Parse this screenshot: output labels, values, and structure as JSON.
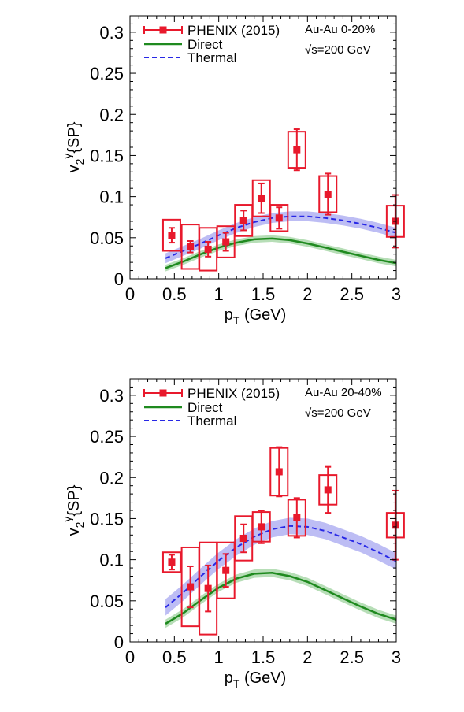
{
  "chart_data": [
    {
      "type": "scatter",
      "note_centrality": "Au-Au 0-20%",
      "note_energy": "√s=200 GeV",
      "xlim": [
        0,
        3
      ],
      "ylim": [
        0,
        0.32
      ],
      "xticks": [
        "0",
        "0.5",
        "1",
        "1.5",
        "2",
        "2.5",
        "3"
      ],
      "yticks": [
        "0",
        "0.05",
        "0.1",
        "0.15",
        "0.2",
        "0.25",
        "0.3"
      ],
      "legend": [
        "PHENIX (2015)",
        "Direct",
        "Thermal"
      ],
      "legend_position": "top-left",
      "grid": false,
      "colors": {
        "data": "#e8192c",
        "direct": "#1f8a1f",
        "direct_band": "#9fd39f",
        "thermal": "#2828e6",
        "thermal_band": "#a7a7f0"
      },
      "phenix": [
        {
          "x": 0.47,
          "y": 0.053,
          "stat": 0.009,
          "sys": 0.019
        },
        {
          "x": 0.68,
          "y": 0.039,
          "stat": 0.007,
          "sys": 0.027
        },
        {
          "x": 0.88,
          "y": 0.036,
          "stat": 0.009,
          "sys": 0.026
        },
        {
          "x": 1.08,
          "y": 0.045,
          "stat": 0.011,
          "sys": 0.019
        },
        {
          "x": 1.28,
          "y": 0.071,
          "stat": 0.012,
          "sys": 0.019
        },
        {
          "x": 1.48,
          "y": 0.098,
          "stat": 0.018,
          "sys": 0.022
        },
        {
          "x": 1.68,
          "y": 0.074,
          "stat": 0.013,
          "sys": 0.016
        },
        {
          "x": 1.88,
          "y": 0.157,
          "stat": 0.025,
          "sys": 0.022
        },
        {
          "x": 2.23,
          "y": 0.103,
          "stat": 0.025,
          "sys": 0.022
        },
        {
          "x": 2.99,
          "y": 0.07,
          "stat": 0.032,
          "sys": 0.019
        }
      ],
      "direct": {
        "x": [
          0.4,
          0.6,
          0.8,
          1.0,
          1.2,
          1.4,
          1.6,
          1.8,
          2.0,
          2.2,
          2.4,
          2.6,
          2.8,
          3.0
        ],
        "y": [
          0.013,
          0.021,
          0.03,
          0.038,
          0.044,
          0.048,
          0.049,
          0.047,
          0.043,
          0.038,
          0.033,
          0.028,
          0.023,
          0.019
        ],
        "band": 0.004
      },
      "thermal": {
        "x": [
          0.4,
          0.6,
          0.8,
          1.0,
          1.2,
          1.4,
          1.6,
          1.8,
          2.0,
          2.2,
          2.4,
          2.6,
          2.8,
          3.0
        ],
        "y": [
          0.025,
          0.034,
          0.043,
          0.053,
          0.062,
          0.069,
          0.074,
          0.076,
          0.076,
          0.074,
          0.071,
          0.067,
          0.062,
          0.056
        ],
        "band": 0.006
      }
    },
    {
      "type": "scatter",
      "note_centrality": "Au-Au 20-40%",
      "note_energy": "√s=200 GeV",
      "xlim": [
        0,
        3
      ],
      "ylim": [
        0,
        0.32
      ],
      "xticks": [
        "0",
        "0.5",
        "1",
        "1.5",
        "2",
        "2.5",
        "3"
      ],
      "yticks": [
        "0",
        "0.05",
        "0.1",
        "0.15",
        "0.2",
        "0.25",
        "0.3"
      ],
      "legend": [
        "PHENIX (2015)",
        "Direct",
        "Thermal"
      ],
      "legend_position": "top-left",
      "grid": false,
      "colors": {
        "data": "#e8192c",
        "direct": "#1f8a1f",
        "direct_band": "#9fd39f",
        "thermal": "#2828e6",
        "thermal_band": "#a7a7f0"
      },
      "phenix": [
        {
          "x": 0.47,
          "y": 0.097,
          "stat": 0.009,
          "sys": 0.012
        },
        {
          "x": 0.68,
          "y": 0.067,
          "stat": 0.025,
          "sys": 0.048
        },
        {
          "x": 0.88,
          "y": 0.065,
          "stat": 0.028,
          "sys": 0.056
        },
        {
          "x": 1.08,
          "y": 0.087,
          "stat": 0.02,
          "sys": 0.034
        },
        {
          "x": 1.28,
          "y": 0.126,
          "stat": 0.017,
          "sys": 0.027
        },
        {
          "x": 1.48,
          "y": 0.14,
          "stat": 0.02,
          "sys": 0.018
        },
        {
          "x": 1.88,
          "y": 0.151,
          "stat": 0.024,
          "sys": 0.022
        },
        {
          "x": 1.68,
          "y": 0.207,
          "stat": 0.03,
          "sys": 0.029
        },
        {
          "x": 2.23,
          "y": 0.185,
          "stat": 0.028,
          "sys": 0.018
        },
        {
          "x": 2.99,
          "y": 0.142,
          "stat": 0.042,
          "sys": 0.015
        }
      ],
      "direct": {
        "x": [
          0.4,
          0.6,
          0.8,
          1.0,
          1.2,
          1.4,
          1.6,
          1.8,
          2.0,
          2.2,
          2.4,
          2.6,
          2.8,
          3.0
        ],
        "y": [
          0.022,
          0.035,
          0.051,
          0.066,
          0.077,
          0.083,
          0.084,
          0.08,
          0.073,
          0.063,
          0.053,
          0.043,
          0.034,
          0.027
        ],
        "band": 0.005
      },
      "thermal": {
        "x": [
          0.4,
          0.6,
          0.8,
          1.0,
          1.2,
          1.4,
          1.6,
          1.8,
          2.0,
          2.2,
          2.4,
          2.6,
          2.8,
          3.0
        ],
        "y": [
          0.042,
          0.06,
          0.08,
          0.099,
          0.115,
          0.128,
          0.137,
          0.141,
          0.14,
          0.135,
          0.127,
          0.119,
          0.109,
          0.098
        ],
        "band": 0.01
      }
    }
  ]
}
